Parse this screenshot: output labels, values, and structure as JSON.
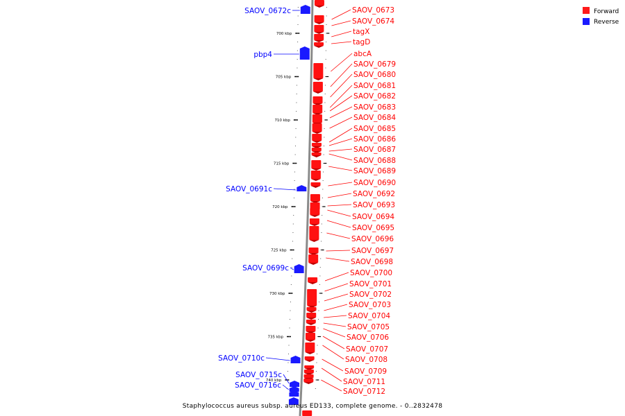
{
  "caption": "Staphylococcus aureus subsp. aureus ED133, complete genome. - 0..2832478",
  "legend": [
    {
      "label": "Forward",
      "color": "#ff1a1a"
    },
    {
      "label": "Reverse",
      "color": "#1a1aff"
    }
  ],
  "scale_ticks": [
    {
      "label": "700 kbp",
      "kbp": 700
    },
    {
      "label": "705 kbp",
      "kbp": 705
    },
    {
      "label": "710 kbp",
      "kbp": 710
    },
    {
      "label": "715 kbp",
      "kbp": 715
    },
    {
      "label": "720 kbp",
      "kbp": 720
    },
    {
      "label": "725 kbp",
      "kbp": 725
    },
    {
      "label": "730 kbp",
      "kbp": 730
    },
    {
      "label": "735 kbp",
      "kbp": 735
    },
    {
      "label": "740 kbp",
      "kbp": 740
    }
  ],
  "forward_genes": [
    "SAOV_0673",
    "SAOV_0674",
    "tagX",
    "tagD",
    "abcA",
    "SAOV_0679",
    "SAOV_0680",
    "SAOV_0681",
    "SAOV_0682",
    "SAOV_0683",
    "SAOV_0684",
    "SAOV_0685",
    "SAOV_0686",
    "SAOV_0687",
    "SAOV_0688",
    "SAOV_0689",
    "SAOV_0690",
    "SAOV_0692",
    "SAOV_0693",
    "SAOV_0694",
    "SAOV_0695",
    "SAOV_0696",
    "SAOV_0697",
    "SAOV_0698",
    "SAOV_0700",
    "SAOV_0701",
    "SAOV_0702",
    "SAOV_0703",
    "SAOV_0704",
    "SAOV_0705",
    "SAOV_0706",
    "SAOV_0707",
    "SAOV_0708",
    "SAOV_0709",
    "SAOV_0711",
    "SAOV_0712"
  ],
  "reverse_genes": [
    "SAOV_0672c",
    "pbp4",
    "SAOV_0691c",
    "SAOV_0699c",
    "SAOV_0710c",
    "SAOV_0715c",
    "SAOV_0716c"
  ]
}
